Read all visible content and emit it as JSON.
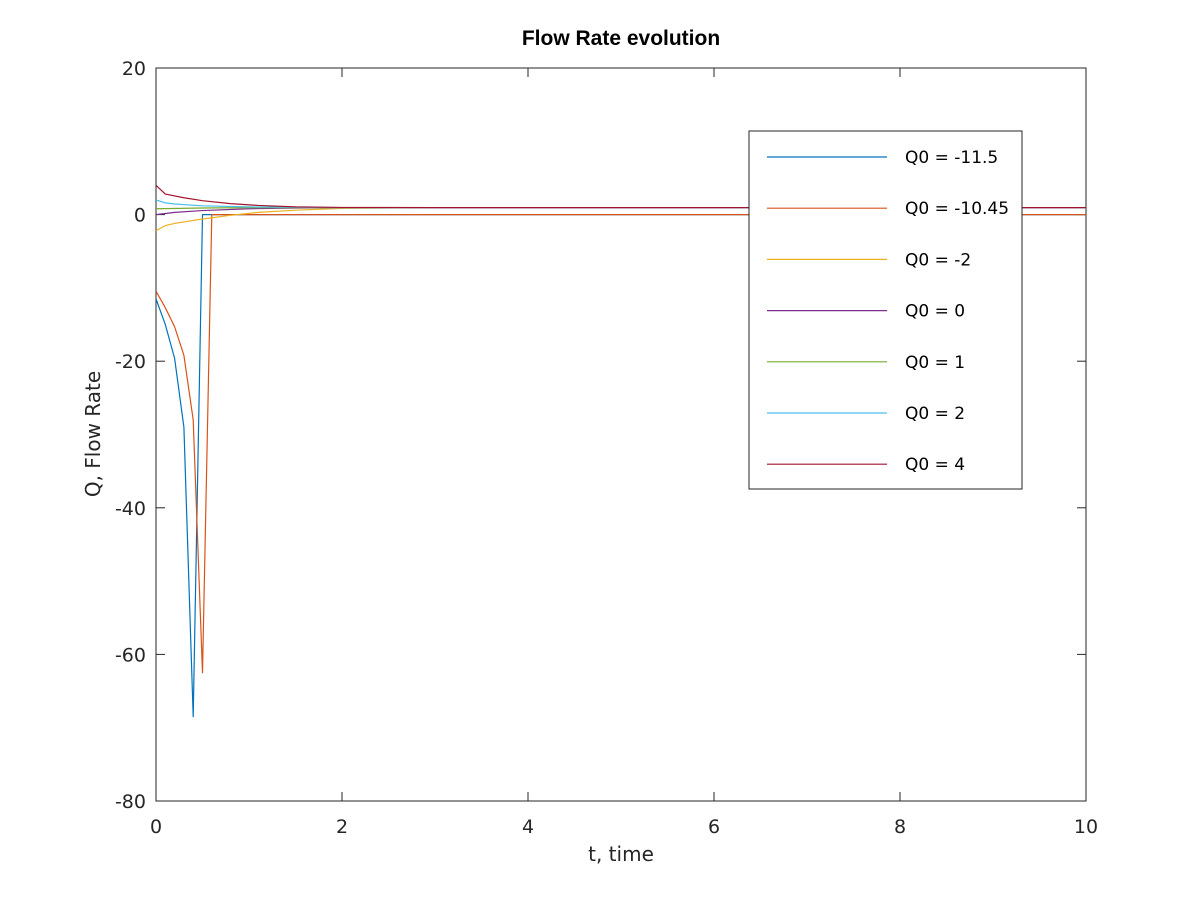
{
  "chart_data": {
    "type": "line",
    "title": "Flow Rate evolution",
    "xlabel": "t, time",
    "ylabel": "Q, Flow Rate",
    "xlim": [
      0,
      10
    ],
    "ylim": [
      -80,
      20
    ],
    "xticks": [
      0,
      2,
      4,
      6,
      8,
      10
    ],
    "xtick_labels": [
      "0",
      "2",
      "4",
      "6",
      "8",
      "10"
    ],
    "yticks": [
      -80,
      -60,
      -40,
      -20,
      0,
      20
    ],
    "ytick_labels": [
      "-80",
      "-60",
      "-40",
      "-20",
      "0",
      "20"
    ],
    "grid": false,
    "legend_position": "top-right",
    "series": [
      {
        "name": "Q0 = -11.5",
        "color": "#0072bd",
        "points": [
          [
            0,
            -11.5
          ],
          [
            0.1,
            -15
          ],
          [
            0.2,
            -19.6
          ],
          [
            0.3,
            -29
          ],
          [
            0.4,
            -68.5
          ],
          [
            0.5,
            0
          ],
          [
            0.6,
            0
          ],
          [
            1,
            0
          ],
          [
            2,
            0
          ],
          [
            10,
            0
          ]
        ]
      },
      {
        "name": "Q0 = -10.45",
        "color": "#d95319",
        "points": [
          [
            0,
            -10.45
          ],
          [
            0.1,
            -12.7
          ],
          [
            0.2,
            -15.3
          ],
          [
            0.3,
            -19.2
          ],
          [
            0.4,
            -28
          ],
          [
            0.5,
            -62.5
          ],
          [
            0.6,
            0
          ],
          [
            1,
            0
          ],
          [
            2,
            0
          ],
          [
            10,
            0
          ]
        ]
      },
      {
        "name": "Q0 = -2",
        "color": "#edb120",
        "points": [
          [
            0,
            -2.2
          ],
          [
            0.1,
            -1.5
          ],
          [
            0.2,
            -1.2
          ],
          [
            0.3,
            -1.0
          ],
          [
            0.5,
            -0.6
          ],
          [
            0.8,
            -0.1
          ],
          [
            1.1,
            0.3
          ],
          [
            1.5,
            0.6
          ],
          [
            2,
            0.85
          ],
          [
            3,
            0.95
          ],
          [
            10,
            0.95
          ]
        ]
      },
      {
        "name": "Q0 = 0",
        "color": "#7e2f8e",
        "points": [
          [
            0,
            0
          ],
          [
            0.2,
            0.3
          ],
          [
            0.5,
            0.55
          ],
          [
            1,
            0.8
          ],
          [
            1.5,
            0.9
          ],
          [
            2,
            0.95
          ],
          [
            10,
            0.95
          ]
        ]
      },
      {
        "name": "Q0 = 1",
        "color": "#77ac30",
        "points": [
          [
            0,
            0.8
          ],
          [
            0.5,
            0.9
          ],
          [
            1,
            0.95
          ],
          [
            2,
            0.95
          ],
          [
            10,
            0.95
          ]
        ]
      },
      {
        "name": "Q0 = 2",
        "color": "#4dbeee",
        "points": [
          [
            0,
            2.0
          ],
          [
            0.1,
            1.6
          ],
          [
            0.2,
            1.45
          ],
          [
            0.5,
            1.2
          ],
          [
            1,
            1.05
          ],
          [
            1.5,
            1.0
          ],
          [
            2,
            0.95
          ],
          [
            10,
            0.95
          ]
        ]
      },
      {
        "name": "Q0 = 4",
        "color": "#a2142f",
        "points": [
          [
            0,
            4.0
          ],
          [
            0.1,
            2.8
          ],
          [
            0.3,
            2.3
          ],
          [
            0.5,
            1.9
          ],
          [
            0.8,
            1.5
          ],
          [
            1.1,
            1.25
          ],
          [
            1.5,
            1.05
          ],
          [
            2,
            0.98
          ],
          [
            3,
            0.95
          ],
          [
            10,
            0.95
          ]
        ]
      }
    ]
  }
}
